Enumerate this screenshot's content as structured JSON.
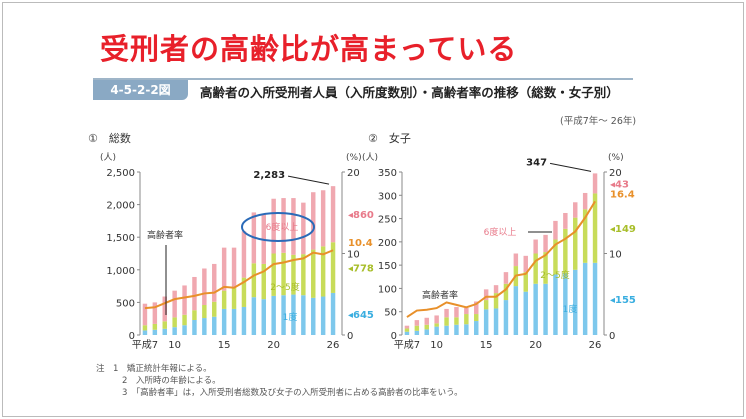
{
  "slide_title": "受刑者の高齢比が高まっている",
  "figure_number": "4-5-2-2図",
  "figure_title": "高齢者の入所受刑者人員（入所度数別）・高齢者率の推移（総数・女子別）",
  "period": "(平成7年～ 26年)",
  "notes": [
    "注　1　矯正統計年報による。",
    "2　入所時の年齢による。",
    "3　「高齢者率」は，入所受刑者総数及び女子の入所受刑者に占める高齢者の比率をいう。"
  ],
  "colors": {
    "first": "#7ec8ec",
    "second_to_fifth": "#c8dc5a",
    "sixth_plus": "#f0a8b0",
    "rate_line": "#e8902a",
    "highlight_ellipse": "#2a6ab8"
  },
  "chart_data": [
    {
      "type": "bar",
      "title": "①　総数",
      "ylabel": "(人)",
      "y2label": "(%)",
      "ylim": [
        0,
        2500
      ],
      "y2lim": [
        0,
        20
      ],
      "yticks": [
        "0",
        "500",
        "1,000",
        "1,500",
        "2,000",
        "2,500"
      ],
      "y2ticks": [
        "0",
        "10",
        "20"
      ],
      "x": [
        7,
        8,
        9,
        10,
        11,
        12,
        13,
        14,
        15,
        16,
        17,
        18,
        19,
        20,
        21,
        22,
        23,
        24,
        25,
        26
      ],
      "xtick_labels": {
        "7": "平成7",
        "10": "10",
        "15": "15",
        "20": "20",
        "26": "26"
      },
      "series": [
        {
          "name": "1度",
          "values": [
            70,
            80,
            95,
            120,
            150,
            230,
            260,
            280,
            400,
            400,
            430,
            580,
            550,
            600,
            610,
            620,
            610,
            570,
            590,
            645
          ]
        },
        {
          "name": "2～5度",
          "values": [
            80,
            90,
            115,
            150,
            160,
            150,
            200,
            230,
            280,
            320,
            450,
            520,
            540,
            650,
            650,
            610,
            630,
            740,
            770,
            778
          ]
        },
        {
          "name": "6度以上",
          "values": [
            330,
            330,
            380,
            410,
            450,
            510,
            560,
            580,
            660,
            620,
            710,
            780,
            770,
            840,
            840,
            870,
            790,
            880,
            860,
            860
          ]
        },
        {
          "name": "高齢者率",
          "axis": "right",
          "values": [
            3.3,
            3.4,
            3.9,
            4.4,
            4.6,
            4.8,
            5.1,
            5.2,
            5.9,
            5.8,
            6.5,
            7.3,
            7.8,
            8.7,
            8.9,
            9.2,
            9.4,
            10.1,
            9.9,
            10.4
          ]
        }
      ],
      "annotations": {
        "total": "2,283",
        "sixth": "860",
        "rate": "10.4",
        "second": "778",
        "first": "645"
      }
    },
    {
      "type": "bar",
      "title": "②　女子",
      "ylabel": "(人)",
      "y2label": "(%)",
      "ylim": [
        0,
        350
      ],
      "y2lim": [
        0,
        20
      ],
      "yticks": [
        "0",
        "50",
        "100",
        "150",
        "200",
        "250",
        "300",
        "350"
      ],
      "y2ticks": [
        "0",
        "10",
        "20"
      ],
      "x": [
        7,
        8,
        9,
        10,
        11,
        12,
        13,
        14,
        15,
        16,
        17,
        18,
        19,
        20,
        21,
        22,
        23,
        24,
        25,
        26
      ],
      "xtick_labels": {
        "7": "平成7",
        "10": "10",
        "15": "15",
        "20": "20",
        "26": "26"
      },
      "series": [
        {
          "name": "1度",
          "values": [
            7,
            9,
            12,
            18,
            20,
            22,
            23,
            30,
            55,
            57,
            75,
            105,
            93,
            110,
            110,
            130,
            132,
            140,
            155,
            155
          ]
        },
        {
          "name": "2～5度",
          "values": [
            7,
            11,
            10,
            7,
            18,
            16,
            22,
            15,
            20,
            33,
            35,
            43,
            42,
            65,
            68,
            75,
            96,
            112,
            115,
            149
          ]
        },
        {
          "name": "6度以上",
          "values": [
            6,
            12,
            15,
            17,
            18,
            22,
            13,
            27,
            23,
            17,
            25,
            27,
            35,
            30,
            37,
            40,
            34,
            33,
            35,
            43
          ]
        },
        {
          "name": "高齢者率",
          "axis": "right",
          "values": [
            2.2,
            3.0,
            3.1,
            3.3,
            4.0,
            3.7,
            3.4,
            3.8,
            4.7,
            4.7,
            5.6,
            7.3,
            7.5,
            9.1,
            9.8,
            11.1,
            11.8,
            12.7,
            14.4,
            16.4
          ]
        }
      ],
      "annotations": {
        "total": "347",
        "sixth": "43",
        "rate": "16.4",
        "second": "149",
        "first": "155"
      }
    }
  ]
}
